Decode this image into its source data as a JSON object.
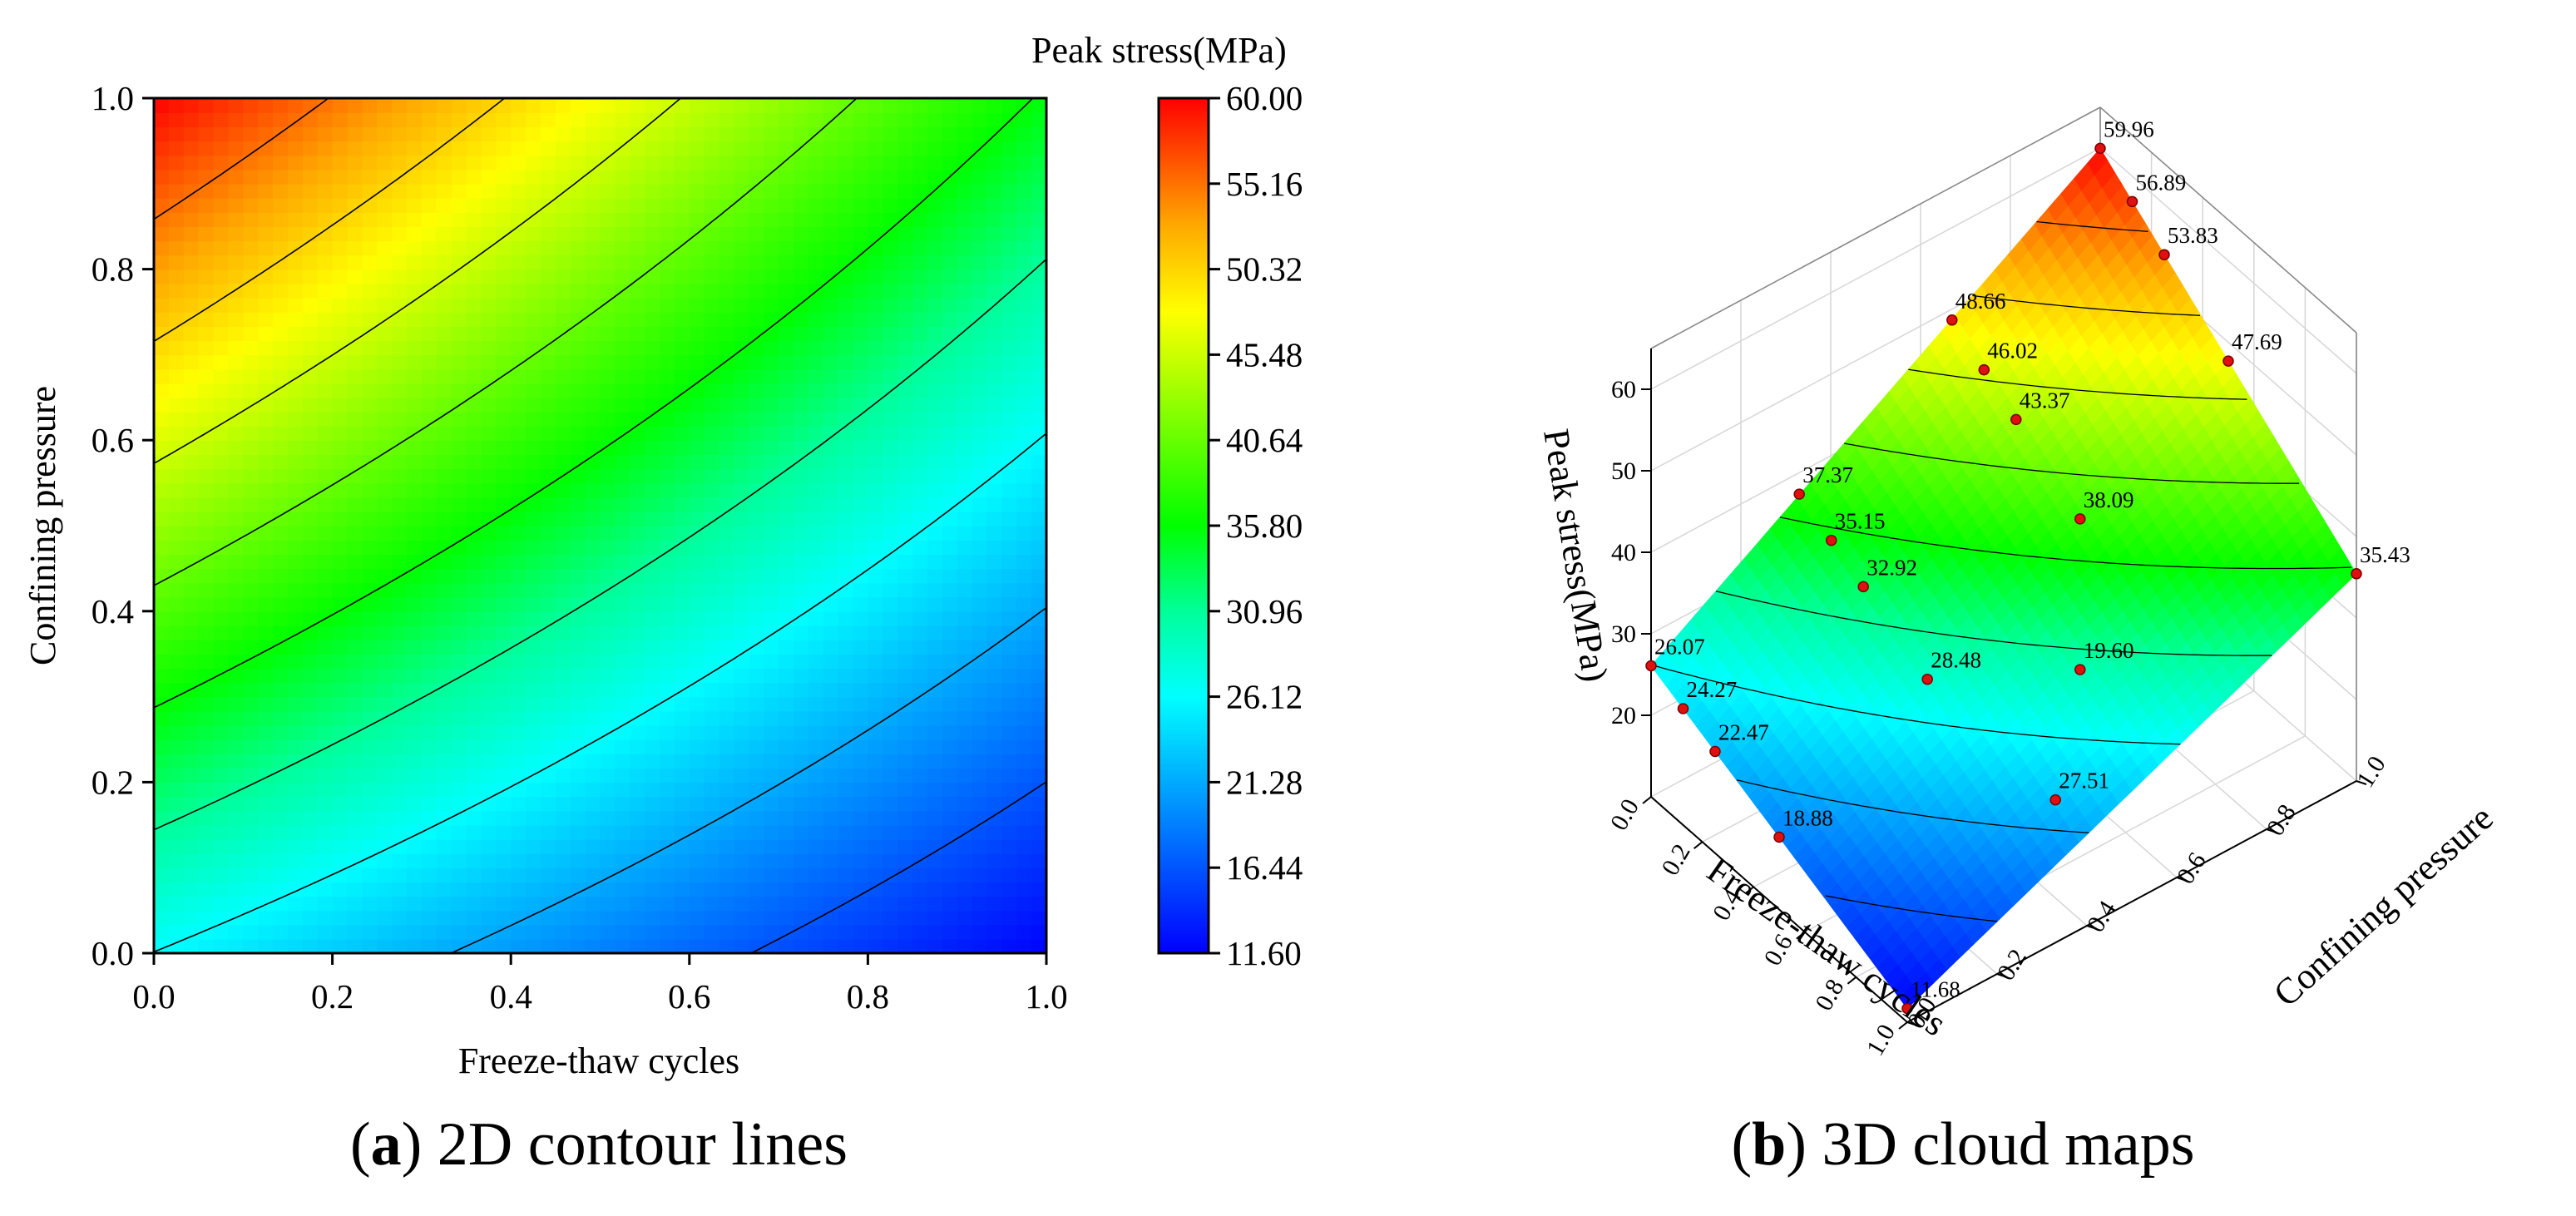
{
  "chart_data": [
    {
      "type": "heatmap",
      "subtype": "contour",
      "panel": "a",
      "caption_letter": "a",
      "caption_text": " 2D contour lines",
      "xlabel": "Freeze-thaw cycles",
      "ylabel": "Confining pressure",
      "xlim": [
        0,
        1
      ],
      "ylim": [
        0,
        1
      ],
      "xticks": [
        "0.0",
        "0.2",
        "0.4",
        "0.6",
        "0.8",
        "1.0"
      ],
      "yticks": [
        "0.0",
        "0.2",
        "0.4",
        "0.6",
        "0.8",
        "1.0"
      ],
      "surface_corners": {
        "x0y0": 26.07,
        "x1y0": 11.68,
        "x0y1": 59.96,
        "x1y1": 35.43
      },
      "colorbar": {
        "title": "Peak stress(MPa)",
        "min": 11.6,
        "max": 60.0,
        "ticks": [
          "60.00",
          "55.16",
          "50.32",
          "45.48",
          "40.64",
          "35.80",
          "30.96",
          "26.12",
          "21.28",
          "16.44",
          "11.60"
        ]
      },
      "contour_levels": [
        16.44,
        21.28,
        26.12,
        30.96,
        35.8,
        40.64,
        45.48,
        50.32,
        55.16
      ]
    },
    {
      "type": "scatter",
      "subtype": "3d-surface",
      "panel": "b",
      "caption_letter": "b",
      "caption_text": " 3D cloud maps",
      "xlabel": "Freeze-thaw cycles",
      "ylabel": "Confining pressure",
      "zlabel": "Peak stress(MPa)",
      "x_ticks": [
        "0.0",
        "0.2",
        "0.4",
        "0.6",
        "0.8",
        "1.0"
      ],
      "y_ticks": [
        "0.0",
        "0.2",
        "0.4",
        "0.6",
        "0.8",
        "1.0"
      ],
      "z_ticks": [
        "20",
        "30",
        "40",
        "50",
        "60"
      ],
      "zlim": [
        10,
        65
      ],
      "points": [
        {
          "x": 0.0,
          "y": 1.0,
          "z": 59.96,
          "label": "59.96"
        },
        {
          "x": 0.125,
          "y": 1.0,
          "z": 56.89,
          "label": "56.89"
        },
        {
          "x": 0.25,
          "y": 1.0,
          "z": 53.83,
          "label": "53.83"
        },
        {
          "x": 0.5,
          "y": 1.0,
          "z": 47.69,
          "label": "47.69"
        },
        {
          "x": 1.0,
          "y": 1.0,
          "z": 35.43,
          "label": "35.43"
        },
        {
          "x": 0.0,
          "y": 0.67,
          "z": 48.66,
          "label": "48.66"
        },
        {
          "x": 0.125,
          "y": 0.67,
          "z": 46.02,
          "label": "46.02"
        },
        {
          "x": 0.25,
          "y": 0.67,
          "z": 43.37,
          "label": "43.37"
        },
        {
          "x": 0.5,
          "y": 0.67,
          "z": 38.09,
          "label": "38.09"
        },
        {
          "x": 0.0,
          "y": 0.33,
          "z": 37.37,
          "label": "37.37"
        },
        {
          "x": 0.125,
          "y": 0.33,
          "z": 35.15,
          "label": "35.15"
        },
        {
          "x": 0.25,
          "y": 0.33,
          "z": 32.92,
          "label": "32.92"
        },
        {
          "x": 0.5,
          "y": 0.33,
          "z": 28.48,
          "label": "28.48"
        },
        {
          "x": 1.0,
          "y": 0.33,
          "z": 27.51,
          "label": "27.51"
        },
        {
          "x": 0.0,
          "y": 0.0,
          "z": 26.07,
          "label": "26.07"
        },
        {
          "x": 0.125,
          "y": 0.0,
          "z": 24.27,
          "label": "24.27"
        },
        {
          "x": 0.25,
          "y": 0.0,
          "z": 22.47,
          "label": "22.47"
        },
        {
          "x": 0.5,
          "y": 0.0,
          "z": 18.88,
          "label": "18.88"
        },
        {
          "x": 0.5,
          "y": 0.67,
          "z": 19.6,
          "label": "19.60"
        },
        {
          "x": 1.0,
          "y": 0.0,
          "z": 11.68,
          "label": "11.68"
        }
      ]
    }
  ]
}
